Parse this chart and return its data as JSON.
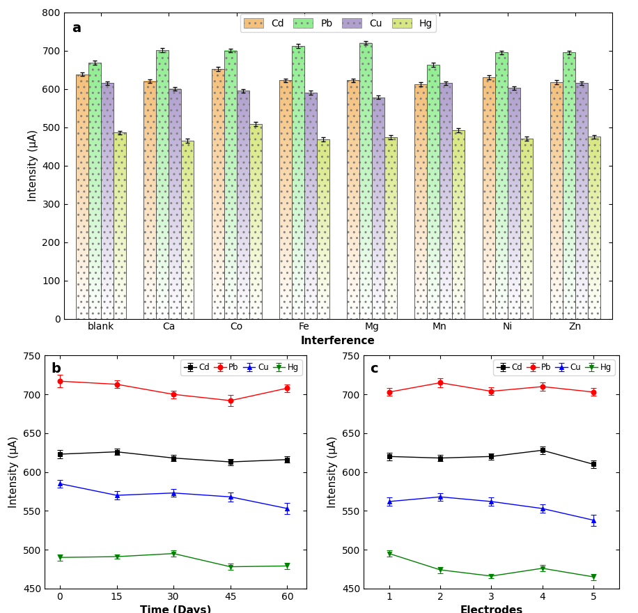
{
  "panel_a": {
    "categories": [
      "blank",
      "Ca",
      "Co",
      "Fe",
      "Mg",
      "Mn",
      "Ni",
      "Zn"
    ],
    "Cd": [
      638,
      620,
      652,
      622,
      622,
      612,
      630,
      617
    ],
    "Pb": [
      668,
      701,
      700,
      712,
      720,
      663,
      695,
      695
    ],
    "Cu": [
      615,
      600,
      595,
      590,
      578,
      615,
      602,
      615
    ],
    "Hg": [
      486,
      465,
      508,
      468,
      474,
      492,
      470,
      475
    ],
    "Cd_err": [
      5,
      5,
      5,
      5,
      5,
      5,
      5,
      5
    ],
    "Pb_err": [
      5,
      5,
      5,
      5,
      5,
      5,
      5,
      5
    ],
    "Cu_err": [
      5,
      5,
      5,
      5,
      5,
      5,
      5,
      5
    ],
    "Hg_err": [
      5,
      5,
      5,
      5,
      5,
      5,
      5,
      5
    ],
    "ylabel": "Intensity (μA)",
    "xlabel": "Interference",
    "ylim": [
      0,
      800
    ],
    "yticks": [
      0,
      100,
      200,
      300,
      400,
      500,
      600,
      700,
      800
    ],
    "label": "a",
    "colors": {
      "Cd": "#F5C07A",
      "Pb": "#90EE90",
      "Cu": "#B0A0CF",
      "Hg": "#D8E880"
    }
  },
  "panel_b": {
    "x": [
      0,
      15,
      30,
      45,
      60
    ],
    "Cd": [
      623,
      626,
      618,
      613,
      616
    ],
    "Pb": [
      717,
      713,
      700,
      692,
      708
    ],
    "Cu": [
      585,
      570,
      573,
      568,
      553
    ],
    "Hg": [
      490,
      491,
      495,
      478,
      479
    ],
    "Cd_err": [
      5,
      4,
      4,
      4,
      4
    ],
    "Pb_err": [
      8,
      5,
      5,
      7,
      5
    ],
    "Cu_err": [
      5,
      5,
      5,
      6,
      7
    ],
    "Hg_err": [
      4,
      3,
      4,
      4,
      4
    ],
    "ylabel": "Intensity (μA)",
    "xlabel": "Time (Days)",
    "ylim": [
      450,
      750
    ],
    "yticks": [
      450,
      500,
      550,
      600,
      650,
      700,
      750
    ],
    "label": "b"
  },
  "panel_c": {
    "x": [
      1,
      2,
      3,
      4,
      5
    ],
    "Cd": [
      620,
      618,
      620,
      628,
      610
    ],
    "Pb": [
      703,
      715,
      704,
      710,
      703
    ],
    "Cu": [
      562,
      568,
      562,
      553,
      538
    ],
    "Hg": [
      495,
      474,
      466,
      476,
      465
    ],
    "Cd_err": [
      5,
      4,
      4,
      5,
      5
    ],
    "Pb_err": [
      5,
      6,
      5,
      5,
      5
    ],
    "Cu_err": [
      5,
      5,
      5,
      5,
      7
    ],
    "Hg_err": [
      4,
      4,
      3,
      4,
      4
    ],
    "ylabel": "Intensity (μA)",
    "xlabel": "Electrodes",
    "ylim": [
      450,
      750
    ],
    "yticks": [
      450,
      500,
      550,
      600,
      650,
      700,
      750
    ],
    "label": "c"
  },
  "legend_metals": [
    "Cd",
    "Pb",
    "Cu",
    "Hg"
  ],
  "label_fontsize": 11,
  "tick_fontsize": 10
}
